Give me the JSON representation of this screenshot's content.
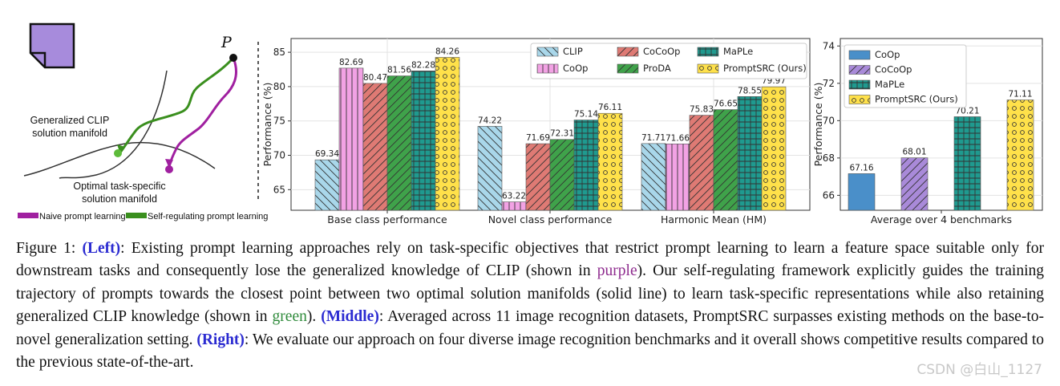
{
  "left_panel": {
    "point_label": "P",
    "clip_manifold_label": [
      "Generalized CLIP",
      "solution manifold"
    ],
    "task_manifold_label": [
      "Optimal task-specific",
      "solution manifold"
    ],
    "legend": [
      {
        "label": "Naive prompt learning",
        "color": "#a020a0"
      },
      {
        "label": "Self-regulating prompt learning",
        "color": "#3a8f1e"
      }
    ],
    "colors": {
      "naive": "#a020a0",
      "self_reg": "#3a8f1e",
      "icon": "#a78bdc"
    }
  },
  "chart_data": [
    {
      "type": "bar",
      "categories": [
        "Base class performance",
        "Novel class performance",
        "Harmonic Mean (HM)"
      ],
      "ylabel": "Performance (%)",
      "xlabel": "",
      "ylim": [
        62,
        87
      ],
      "yticks": [
        65,
        70,
        75,
        80,
        85
      ],
      "grid": true,
      "legend_position": "top-right",
      "series": [
        {
          "name": "CLIP",
          "values": [
            69.34,
            74.22,
            71.71
          ],
          "color": "#a9d7ea",
          "hatch": "diag-back"
        },
        {
          "name": "CoOp",
          "values": [
            82.69,
            63.22,
            71.66
          ],
          "color": "#f2a2e4",
          "hatch": "vertical"
        },
        {
          "name": "CoCoOp",
          "values": [
            80.47,
            71.69,
            75.83
          ],
          "color": "#df7a74",
          "hatch": "diag-fwd"
        },
        {
          "name": "ProDA",
          "values": [
            81.56,
            72.31,
            76.65
          ],
          "color": "#3fa24a",
          "hatch": "diag-fwd"
        },
        {
          "name": "MaPLe",
          "values": [
            82.28,
            75.14,
            78.55
          ],
          "color": "#1f9a8f",
          "hatch": "grid"
        },
        {
          "name": "PromptSRC (Ours)",
          "values": [
            84.26,
            76.11,
            79.97
          ],
          "color": "#ffe14a",
          "hatch": "dots"
        }
      ],
      "value_labels": [
        [
          "69.34",
          "74.22",
          "71.71"
        ],
        [
          "82.69",
          "63.22",
          "71.66"
        ],
        [
          "80.47",
          "71.69",
          "75.83"
        ],
        [
          "81.56",
          "72.31",
          "76.65"
        ],
        [
          "82.28",
          "75.14",
          "78.55"
        ],
        [
          "84.26",
          "76.11",
          "79.97"
        ]
      ]
    },
    {
      "type": "bar",
      "categories": [
        "Average over 4 benchmarks"
      ],
      "ylabel": "Performance (%)",
      "xlabel": "",
      "ylim": [
        65.2,
        74.4
      ],
      "yticks": [
        66,
        68,
        70,
        72,
        74
      ],
      "grid": true,
      "legend_position": "top-left",
      "series": [
        {
          "name": "CoOp",
          "values": [
            67.16
          ],
          "color": "#4a8fc9",
          "hatch": "none"
        },
        {
          "name": "CoCoOp",
          "values": [
            68.01
          ],
          "color": "#a98ad9",
          "hatch": "diag-fwd"
        },
        {
          "name": "MaPLe",
          "values": [
            70.21
          ],
          "color": "#1f9a8f",
          "hatch": "grid"
        },
        {
          "name": "PromptSRC (Ours)",
          "values": [
            71.11
          ],
          "color": "#ffe14a",
          "hatch": "dots"
        }
      ],
      "value_labels": [
        "67.16",
        "68.01",
        "70.21",
        "71.11"
      ]
    }
  ],
  "caption": {
    "p1": "Figure 1: ",
    "left_tag": "(Left)",
    "p2": ": Existing prompt learning approaches rely on task-specific objectives that restrict prompt learning to learn a feature space suitable only for downstream tasks and consequently lose the generalized knowledge of CLIP (shown in ",
    "purple_word": "purple",
    "p3": "). Our self-regulating framework explicitly guides the training trajectory of prompts towards the closest point between two optimal solution manifolds (solid line) to learn task-specific representations while also retaining generalized CLIP knowledge (shown in ",
    "green_word": "green",
    "p4": "). ",
    "middle_tag": "(Middle)",
    "p5": ": Averaged across 11 image recognition datasets, PromptSRC surpasses existing methods on the base-to-novel generalization setting. ",
    "right_tag": "(Right)",
    "p6": ": We evaluate our approach on four diverse image recognition benchmarks and it overall shows competitive results compared to the previous state-of-the-art."
  },
  "watermark": "CSDN @白山_1127"
}
